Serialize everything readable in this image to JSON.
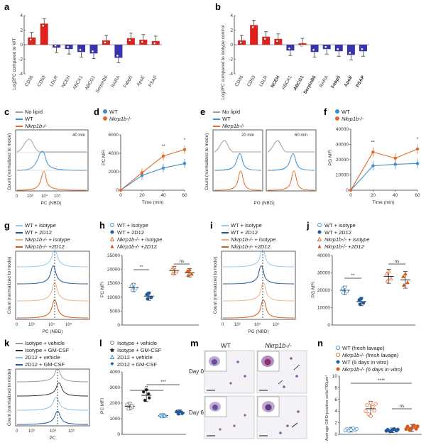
{
  "panels": {
    "a": {
      "label": "a",
      "ylabel": "Log2FC compared to WT",
      "yticks": [
        "4",
        "2",
        "0",
        "-2",
        "-4"
      ]
    },
    "b": {
      "label": "b",
      "ylabel": "Log2FC compared to isotype control",
      "yticks": [
        "4",
        "2",
        "0",
        "-2",
        "-4"
      ]
    },
    "c": {
      "label": "c",
      "legend": [
        "No lipid",
        "WT",
        "Nkrp1b-/-"
      ],
      "time": "40 min",
      "ylabel": "Count (normalized to mode)",
      "xlabel": "PC (NBD)"
    },
    "d": {
      "label": "d",
      "legend": [
        "WT",
        "Nkrp1b-/-"
      ],
      "ylabel": "PC MFI",
      "xlabel": "Time (min)",
      "yticks": [
        "6000",
        "4000",
        "2000",
        "0"
      ],
      "xticks": [
        "0",
        "20",
        "40",
        "60"
      ],
      "sig": [
        "**",
        "*"
      ]
    },
    "e": {
      "label": "e",
      "legend": [
        "No lipid",
        "WT",
        "Nkrp1b-/-"
      ],
      "times": [
        "20 min",
        "60 min"
      ],
      "ylabel": "Count (normalized to mode)",
      "xlabel": "PG (NBD)"
    },
    "f": {
      "label": "f",
      "legend": [
        "WT",
        "Nkrp1b-/-"
      ],
      "ylabel": "PG MFI",
      "xlabel": "Time (min)",
      "yticks": [
        "40000",
        "30000",
        "20000",
        "10000",
        "0"
      ],
      "xticks": [
        "0",
        "20",
        "40",
        "60"
      ],
      "sig": [
        "**",
        "*"
      ]
    },
    "g": {
      "label": "g",
      "legend": [
        "WT + isotype",
        "WT + 2D12",
        "Nkrp1b-/- + isotype",
        "Nkrp1b-/- +2D12"
      ],
      "ylabel": "Count (normalized to mode)",
      "xlabel": "PC (NBD)"
    },
    "h": {
      "label": "h",
      "legend": [
        "WT + isotype",
        "WT + 2D12",
        "Nkrp1b-/- + isotype",
        "Nkrp1b-/- +2D12"
      ],
      "ylabel": "PC MFI",
      "yticks": [
        "25000",
        "20000",
        "15000",
        "10000",
        "5000",
        "0"
      ],
      "sig": [
        "**",
        "ns"
      ]
    },
    "i": {
      "label": "i",
      "legend": [
        "WT + isotype",
        "WT + 2D12",
        "Nkrp1b-/- + isotype",
        "Nkrp1b-/- +2D12"
      ],
      "ylabel": "Count (normalized to mode)",
      "xlabel": "PG (NBD)"
    },
    "j": {
      "label": "j",
      "legend": [
        "WT + isotype",
        "WT + 2D12",
        "Nkrp1b-/- + isotype",
        "Nkrp1b-/- +2D12"
      ],
      "ylabel": "PG MFI",
      "yticks": [
        "40000",
        "30000",
        "20000",
        "10000",
        "0"
      ],
      "sig": [
        "**",
        "ns"
      ]
    },
    "k": {
      "label": "k",
      "legend": [
        "Isotype + vehicle",
        "Isotype + GM-CSF",
        "2D12 + vehicle",
        "2D12 + GM-CSF"
      ],
      "ylabel": "Count (normalized to mode)",
      "xlabel": "PC"
    },
    "l": {
      "label": "l",
      "legend": [
        "Isotype + vehicle",
        "Isotype + GM-CSF",
        "2D12 + vehicle",
        "2D12 + GM-CSF"
      ],
      "ylabel": "PC MFI",
      "yticks": [
        "4000",
        "3000",
        "2000",
        "1000",
        "0"
      ],
      "sig": [
        "**",
        "***"
      ]
    },
    "m": {
      "label": "m",
      "cols": [
        "WT",
        "Nkrp1b-/-"
      ],
      "rows": [
        "Day 0",
        "Day 6"
      ]
    },
    "n": {
      "label": "n",
      "legend": [
        "WT (fresh lavage)",
        "Nkrp1b-/- (fresh lavage)",
        "WT (6 days in vitro)",
        "Nkrp1b-/- (6 days in vitro)"
      ],
      "ylabel": "Average ORO-positive cells/700µm²",
      "yticks": [
        "10",
        "8",
        "6",
        "4",
        "2",
        "0"
      ],
      "sig": [
        "****",
        "ns"
      ]
    }
  },
  "genes_a": [
    "CD36",
    "CD63",
    "LDLR",
    "NCEH",
    "ABCA1",
    "ABCG1",
    "SerpinB6",
    "RARA",
    "Fabp5",
    "ApoE",
    "PSAP"
  ],
  "genes_b": [
    "CD36",
    "CD63",
    "LDLR",
    "NCEH",
    "ABCA1",
    "ABCG1",
    "SerpinB6",
    "RARA",
    "Fabp5",
    "ApoE",
    "PSAP"
  ],
  "colors": {
    "red": "#e0211c",
    "blue": "#3a33b0",
    "wt": "#3b8fd0",
    "ko": "#e4692c",
    "gray": "#a0a0a0"
  },
  "chart_data": [
    {
      "type": "bar",
      "title": "a",
      "categories": [
        "CD36",
        "CD63",
        "LDLR",
        "NCEH",
        "ABCA1",
        "ABCG1",
        "SerpinB6",
        "RARA",
        "Fabp5",
        "ApoE",
        "PSAP"
      ],
      "values": [
        1.0,
        2.9,
        -0.4,
        -0.6,
        -1.0,
        -1.2,
        0.6,
        -1.8,
        0.9,
        0.7,
        0.5
      ],
      "ylabel": "Log2FC compared to WT",
      "ylim": [
        -4,
        4
      ]
    },
    {
      "type": "bar",
      "title": "b",
      "categories": [
        "CD36",
        "CD63",
        "LDLR",
        "NCEH",
        "ABCA1",
        "ABCG1",
        "SerpinB6",
        "RARA",
        "Fabp5",
        "ApoE",
        "PSAP"
      ],
      "values": [
        0.6,
        2.7,
        1.1,
        0.8,
        -0.8,
        0.2,
        -1.0,
        -0.6,
        -0.9,
        -1.4,
        -0.9
      ],
      "ylabel": "Log2FC compared to isotype control",
      "ylim": [
        -4,
        4
      ]
    },
    {
      "type": "line",
      "title": "d",
      "x": [
        0,
        20,
        40,
        60
      ],
      "series": [
        {
          "name": "WT",
          "values": [
            0,
            1600,
            2400,
            2900
          ]
        },
        {
          "name": "Nkrp1b-/-",
          "values": [
            0,
            1900,
            3700,
            4400
          ]
        }
      ],
      "ylabel": "PC MFI",
      "xlabel": "Time (min)",
      "ylim": [
        0,
        6000
      ]
    },
    {
      "type": "line",
      "title": "f",
      "x": [
        0,
        20,
        40,
        60
      ],
      "series": [
        {
          "name": "WT",
          "values": [
            0,
            16000,
            17000,
            17500
          ]
        },
        {
          "name": "Nkrp1b-/-",
          "values": [
            0,
            25000,
            21000,
            27000
          ]
        }
      ],
      "ylabel": "PG MFI",
      "xlabel": "Time (min)",
      "ylim": [
        0,
        40000
      ]
    },
    {
      "type": "scatter",
      "title": "h",
      "categories": [
        "WT + isotype",
        "WT + 2D12",
        "Nkrp1b-/- + isotype",
        "Nkrp1b-/- +2D12"
      ],
      "values": [
        13500,
        10400,
        19600,
        18800
      ],
      "ylabel": "PC MFI",
      "ylim": [
        0,
        25000
      ]
    },
    {
      "type": "scatter",
      "title": "j",
      "categories": [
        "WT + isotype",
        "WT + 2D12",
        "Nkrp1b-/- + isotype",
        "Nkrp1b-/- +2D12"
      ],
      "values": [
        20000,
        13500,
        28000,
        26000
      ],
      "ylabel": "PG MFI",
      "ylim": [
        0,
        40000
      ]
    },
    {
      "type": "scatter",
      "title": "l",
      "categories": [
        "Isotype + vehicle",
        "Isotype + GM-CSF",
        "2D12 + vehicle",
        "2D12 + GM-CSF"
      ],
      "values": [
        1800,
        2500,
        1200,
        1400
      ],
      "ylabel": "PC MFI",
      "ylim": [
        0,
        4000
      ]
    },
    {
      "type": "scatter",
      "title": "n",
      "categories": [
        "WT (fresh lavage)",
        "Nkrp1b-/- (fresh lavage)",
        "WT (6 days in vitro)",
        "Nkrp1b-/- (6 days in vitro)"
      ],
      "values": [
        0.8,
        4.4,
        0.7,
        1.1
      ],
      "ylabel": "Average ORO-positive cells/700µm²",
      "ylim": [
        0,
        10
      ]
    }
  ]
}
